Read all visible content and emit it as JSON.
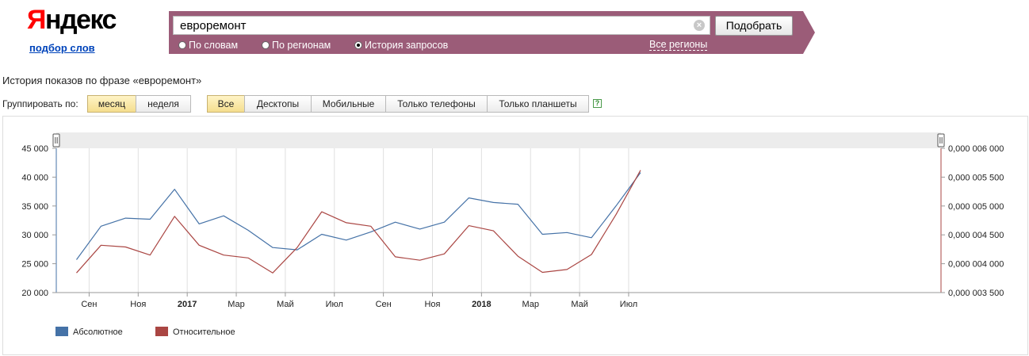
{
  "logo": {
    "word_first": "Я",
    "word_rest": "ндекс",
    "subtitle": "подбор слов"
  },
  "search": {
    "query": "евроремонт",
    "button_label": "Подобрать",
    "modes": [
      {
        "label": "По словам",
        "checked": false
      },
      {
        "label": "По регионам",
        "checked": false
      },
      {
        "label": "История запросов",
        "checked": true
      }
    ],
    "regions_link": "Все регионы",
    "clear_icon": "×"
  },
  "heading": "История показов по фразе «евроремонт»",
  "grouping": {
    "label": "Группировать по:",
    "options": [
      {
        "label": "месяц",
        "active": true
      },
      {
        "label": "неделя",
        "active": false
      }
    ]
  },
  "device_filter": {
    "options": [
      {
        "label": "Все",
        "active": true
      },
      {
        "label": "Десктопы",
        "active": false
      },
      {
        "label": "Мобильные",
        "active": false
      },
      {
        "label": "Только телефоны",
        "active": false
      },
      {
        "label": "Только планшеты",
        "active": false
      }
    ],
    "help_icon": "?"
  },
  "colors": {
    "absolute": "#4572a7",
    "relative": "#aa4643",
    "header_bar": "#9b5c78"
  },
  "chart_data": {
    "type": "line",
    "x": [
      "2016-08",
      "2016-09",
      "2016-10",
      "2016-11",
      "2016-12",
      "2017-01",
      "2017-02",
      "2017-03",
      "2017-04",
      "2017-05",
      "2017-06",
      "2017-07",
      "2017-08",
      "2017-09",
      "2017-10",
      "2017-11",
      "2017-12",
      "2018-01",
      "2018-02",
      "2018-03",
      "2018-04",
      "2018-05",
      "2018-06",
      "2018-07"
    ],
    "x_tick_labels": [
      {
        "label": "Сен",
        "bold": false
      },
      {
        "label": "Ноя",
        "bold": false
      },
      {
        "label": "2017",
        "bold": true
      },
      {
        "label": "Мар",
        "bold": false
      },
      {
        "label": "Май",
        "bold": false
      },
      {
        "label": "Июл",
        "bold": false
      },
      {
        "label": "Сен",
        "bold": false
      },
      {
        "label": "Ноя",
        "bold": false
      },
      {
        "label": "2018",
        "bold": true
      },
      {
        "label": "Мар",
        "bold": false
      },
      {
        "label": "Май",
        "bold": false
      },
      {
        "label": "Июл",
        "bold": false
      }
    ],
    "series": [
      {
        "name": "Абсолютное",
        "axis": "left",
        "values": [
          25700,
          31500,
          32900,
          32700,
          37900,
          31900,
          33300,
          30800,
          27800,
          27400,
          30100,
          29100,
          30500,
          32200,
          31000,
          32200,
          36400,
          35600,
          35300,
          30100,
          30400,
          29500,
          35000,
          40800
        ]
      },
      {
        "name": "Относительное",
        "axis": "right",
        "values": [
          3.84e-06,
          4.32e-06,
          4.29e-06,
          4.15e-06,
          4.82e-06,
          4.32e-06,
          4.15e-06,
          4.1e-06,
          3.84e-06,
          4.28e-06,
          4.9e-06,
          4.71e-06,
          4.65e-06,
          4.12e-06,
          4.06e-06,
          4.17e-06,
          4.66e-06,
          4.57e-06,
          4.13e-06,
          3.85e-06,
          3.9e-06,
          4.16e-06,
          4.85e-06,
          5.62e-06
        ]
      }
    ],
    "y_left": {
      "min": 20000,
      "max": 45000,
      "ticks": [
        20000,
        25000,
        30000,
        35000,
        40000,
        45000
      ],
      "tick_labels": [
        "20 000",
        "25 000",
        "30 000",
        "35 000",
        "40 000",
        "45 000"
      ]
    },
    "y_right": {
      "min": 3.5e-06,
      "max": 6e-06,
      "ticks": [
        3.5e-06,
        4e-06,
        4.5e-06,
        5e-06,
        5.5e-06,
        6e-06
      ],
      "tick_labels": [
        "0,000 003 500",
        "0,000 004 000",
        "0,000 004 500",
        "0,000 005 000",
        "0,000 005 500",
        "0,000 006 000"
      ]
    },
    "grid": "vertical",
    "legend": "bottom-left"
  }
}
